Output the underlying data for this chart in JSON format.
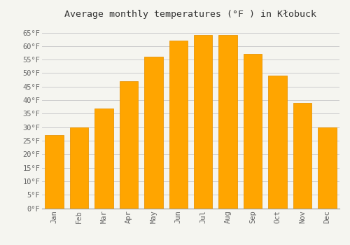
{
  "title": "Average monthly temperatures (°F ) in Kłobuck",
  "months": [
    "Jan",
    "Feb",
    "Mar",
    "Apr",
    "May",
    "Jun",
    "Jul",
    "Aug",
    "Sep",
    "Oct",
    "Nov",
    "Dec"
  ],
  "values": [
    27,
    30,
    37,
    47,
    56,
    62,
    64,
    64,
    57,
    49,
    39,
    30
  ],
  "bar_color": "#FFA500",
  "bar_edge_color": "#e8960a",
  "ylim": [
    0,
    68
  ],
  "yticks": [
    0,
    5,
    10,
    15,
    20,
    25,
    30,
    35,
    40,
    45,
    50,
    55,
    60,
    65
  ],
  "background_color": "#f5f5f0",
  "grid_color": "#cccccc",
  "title_fontsize": 9.5,
  "tick_fontsize": 7.5,
  "font_family": "monospace"
}
